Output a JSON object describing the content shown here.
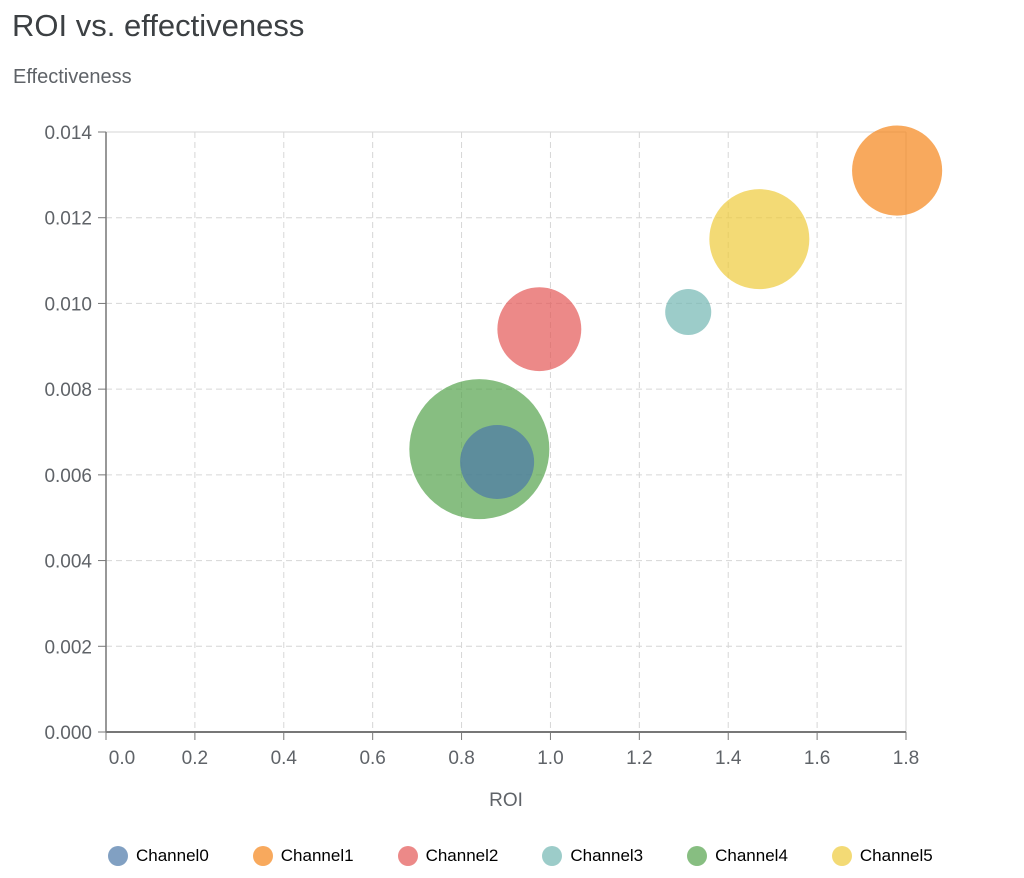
{
  "chart_data": {
    "type": "scatter",
    "title": "ROI vs. effectiveness",
    "xlabel": "ROI",
    "ylabel": "Effectiveness",
    "xlim": [
      0,
      1.8
    ],
    "ylim": [
      0,
      0.014
    ],
    "xticks": [
      "0.0",
      "0.2",
      "0.4",
      "0.6",
      "0.8",
      "1.0",
      "1.2",
      "1.4",
      "1.6",
      "1.8"
    ],
    "yticks": [
      "0.000",
      "0.002",
      "0.004",
      "0.006",
      "0.008",
      "0.010",
      "0.012",
      "0.014"
    ],
    "grid": true,
    "legend_position": "bottom",
    "point_opacity": 0.7,
    "series": [
      {
        "name": "Channel0",
        "color": "#4c78a8",
        "x": 0.88,
        "y": 0.0063,
        "size": 13.7
      },
      {
        "name": "Channel1",
        "color": "#f58518",
        "x": 1.78,
        "y": 0.0131,
        "size": 20.3
      },
      {
        "name": "Channel2",
        "color": "#e45756",
        "x": 0.975,
        "y": 0.0094,
        "size": 17.6
      },
      {
        "name": "Channel3",
        "color": "#72b7b2",
        "x": 1.31,
        "y": 0.0098,
        "size": 5.3
      },
      {
        "name": "Channel4",
        "color": "#54a24b",
        "x": 0.84,
        "y": 0.0066,
        "size": 49
      },
      {
        "name": "Channel5",
        "color": "#eeca3b",
        "x": 1.47,
        "y": 0.0115,
        "size": 25
      }
    ]
  }
}
